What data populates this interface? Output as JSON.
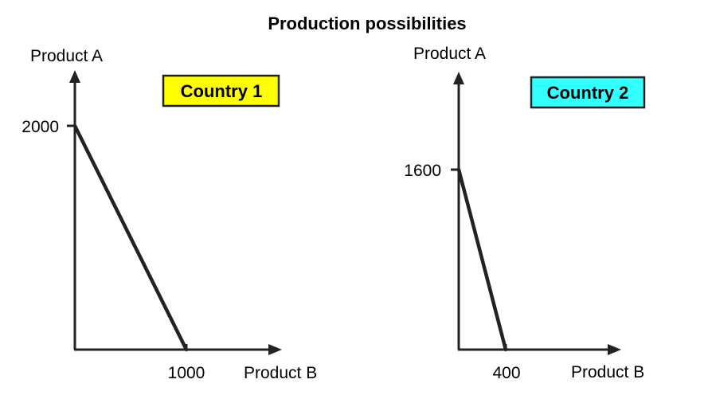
{
  "title": "Production possibilities",
  "chart_data": [
    {
      "type": "line",
      "name": "Country 1",
      "label": "Country 1",
      "label_color": "#ffff00",
      "xlabel": "Product B",
      "ylabel": "Product A",
      "x": [
        0,
        1000
      ],
      "y": [
        2000,
        0
      ],
      "x_tick_label": "1000",
      "y_tick_label": "2000",
      "grid": false
    },
    {
      "type": "line",
      "name": "Country 2",
      "label": "Country 2",
      "label_color": "#33ffff",
      "xlabel": "Product B",
      "ylabel": "Product A",
      "x": [
        0,
        400
      ],
      "y": [
        1600,
        0
      ],
      "x_tick_label": "400",
      "y_tick_label": "1600",
      "grid": false
    }
  ]
}
